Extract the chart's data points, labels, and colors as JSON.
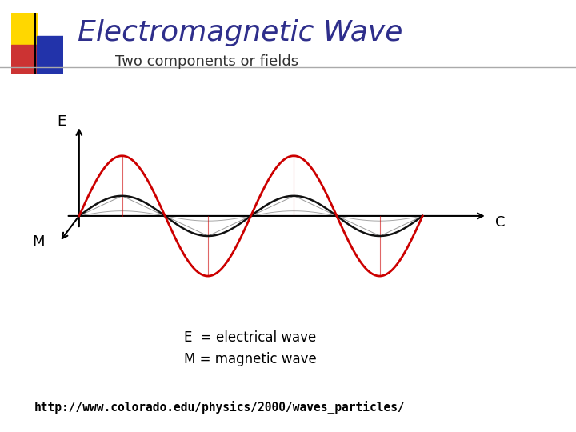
{
  "title": "Electromagnetic Wave",
  "subtitle": "Two components or fields",
  "title_color": "#2E2E8B",
  "title_fontsize": 26,
  "subtitle_fontsize": 13,
  "bg_color": "#ffffff",
  "legend_E": "E  = electrical wave",
  "legend_M": "M = magnetic wave",
  "url": "http://www.colorado.edu/physics/2000/waves_particles/",
  "wave_color_E": "#cc0000",
  "wave_color_M": "#111111",
  "icon_yellow": "#FFD700",
  "icon_red": "#cc3333",
  "icon_blue": "#2233aa"
}
